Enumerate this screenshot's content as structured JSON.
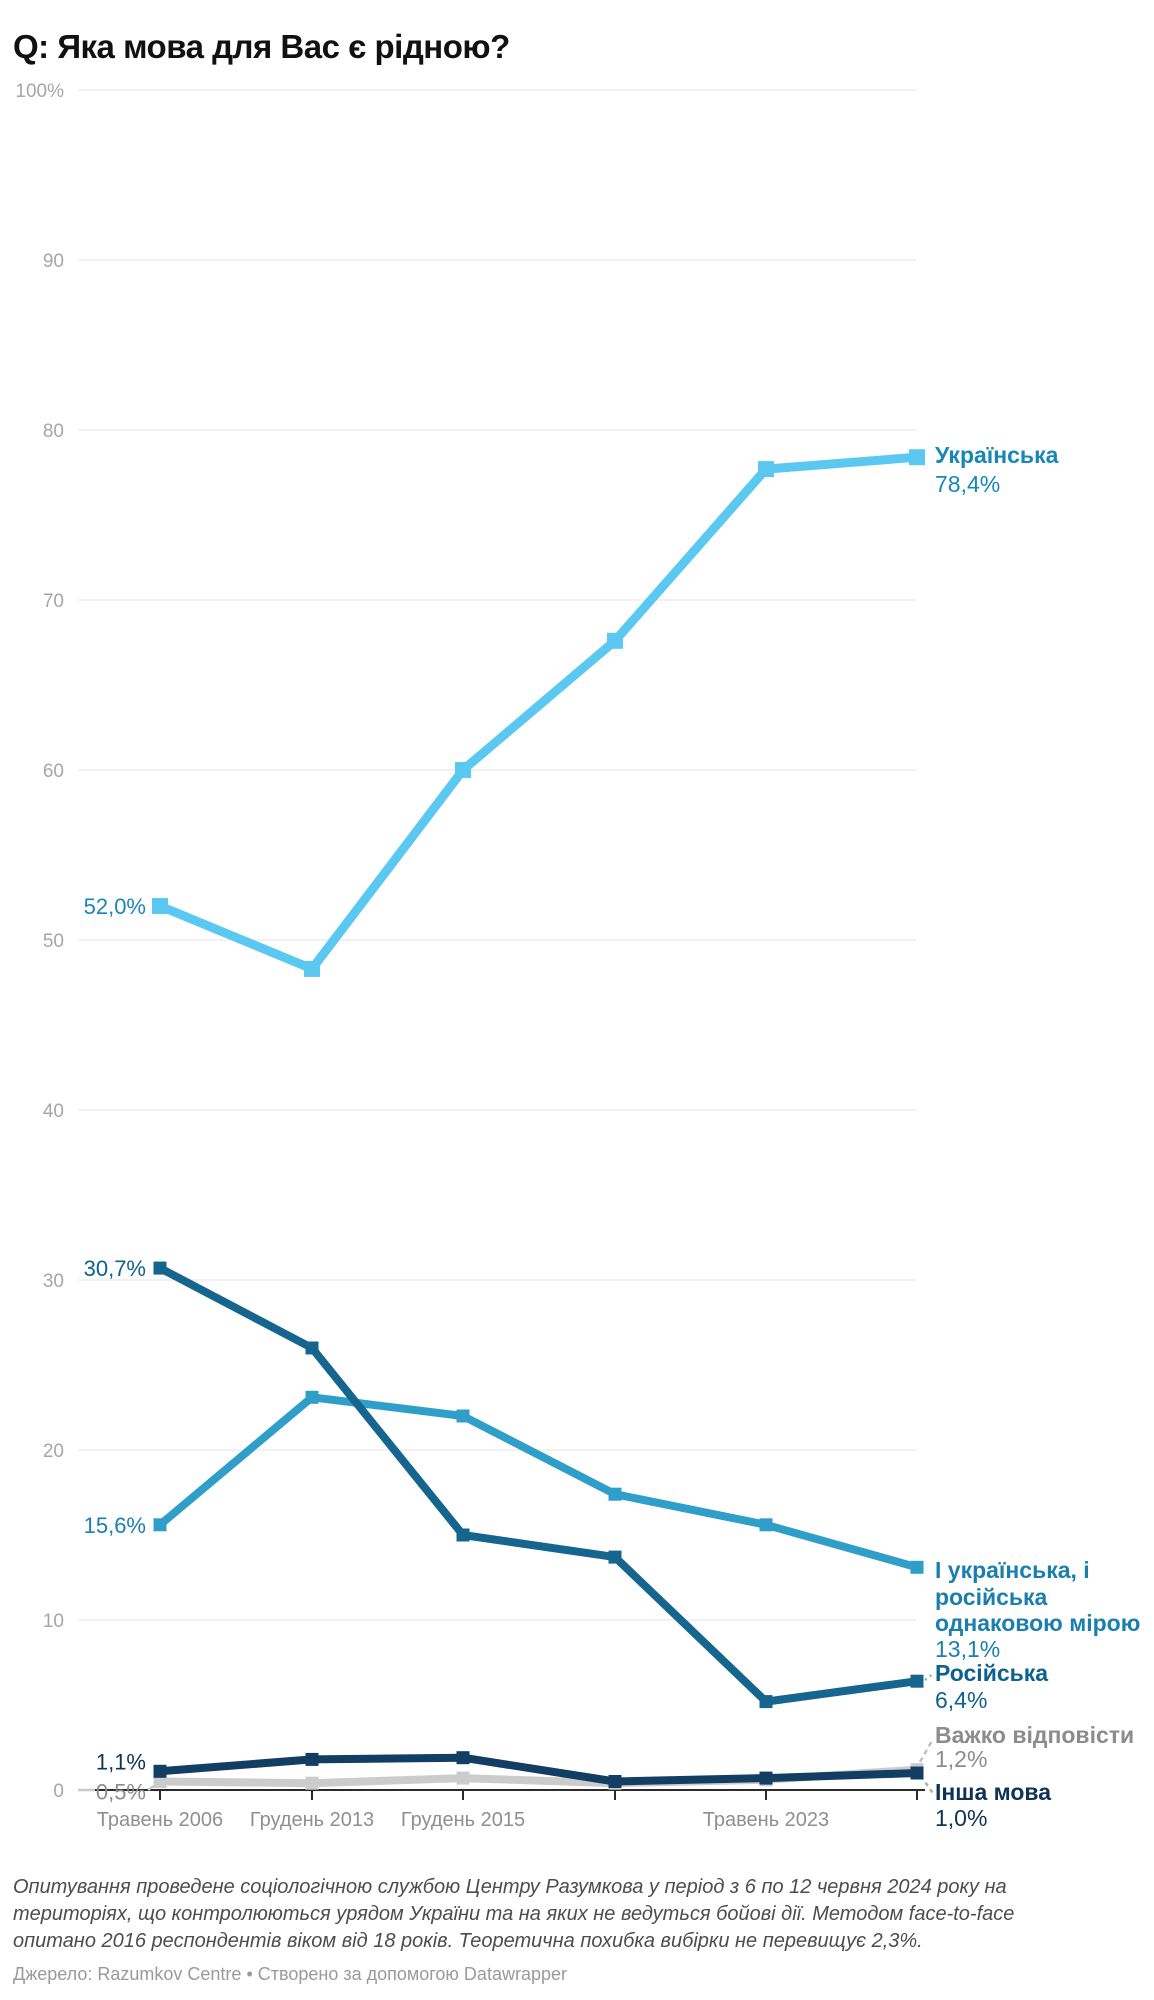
{
  "title": "Q: Яка мова для Вас є рідною?",
  "chart_data": {
    "type": "line",
    "categories": [
      "Травень 2006",
      "Грудень 2013",
      "Грудень 2015",
      "",
      "Травень 2023",
      ""
    ],
    "y_axis": {
      "min": 0,
      "max": 100,
      "tick_step": 10,
      "tick_labels": [
        "100%",
        "90",
        "80",
        "70",
        "60",
        "50",
        "40",
        "30",
        "20",
        "10",
        "0"
      ],
      "grid": true
    },
    "legend_position": "right-end-labels",
    "series": [
      {
        "id": "ukrainska",
        "name": "Українська",
        "label_lines": [
          "Українська"
        ],
        "color": "#5bc8f2",
        "label_color": "#1787b8",
        "values": [
          52.0,
          48.3,
          60.0,
          67.6,
          77.7,
          78.4
        ],
        "first_label": "52,0%",
        "end_label": "78,4%"
      },
      {
        "id": "both-equally",
        "name": "І українська, і російська однаковою мірою",
        "label_lines": [
          "І українська, і",
          "російська",
          "однаковою мірою"
        ],
        "color": "#2f9ec9",
        "label_color": "#1a7fae",
        "values": [
          15.6,
          23.1,
          22.0,
          17.4,
          15.6,
          13.1
        ],
        "first_label": "15,6%",
        "end_label": "13,1%"
      },
      {
        "id": "rosiyska",
        "name": "Російська",
        "label_lines": [
          "Російська"
        ],
        "color": "#15658f",
        "label_color": "#0e618e",
        "values": [
          30.7,
          26.0,
          15.0,
          13.7,
          5.2,
          6.4
        ],
        "first_label": "30,7%",
        "end_label": "6,4%"
      },
      {
        "id": "vazhko-vidpovisty",
        "name": "Важко відповісти",
        "label_lines": [
          "Важко відповісти"
        ],
        "color": "#cccccc",
        "label_color": "#8c8c8c",
        "values": [
          0.5,
          0.4,
          0.7,
          0.4,
          0.6,
          1.2
        ],
        "first_label": "0,5%",
        "end_label": "1,2%"
      },
      {
        "id": "insha-mova",
        "name": "Інша мова",
        "label_lines": [
          "Інша мова"
        ],
        "color": "#123e63",
        "label_color": "#0d3356",
        "values": [
          1.1,
          1.8,
          1.9,
          0.5,
          0.7,
          1.0
        ],
        "first_label": "1,1%",
        "end_label": "1,0%"
      }
    ]
  },
  "footer": {
    "notes_lines": [
      "Опитування проведене соціологічною службою Центру Разумкова у період з 6 по 12 червня 2024 року на",
      "територіях, що контролюються урядом України та на яких не ведуться бойові дії. Методом face-to-face",
      "опитано 2016 респондентів віком від 18 років. Теоретична похибка вибірки не перевищує 2,3%."
    ],
    "source": "Джерело: Razumkov Centre • Створено за допомогою Datawrapper"
  }
}
